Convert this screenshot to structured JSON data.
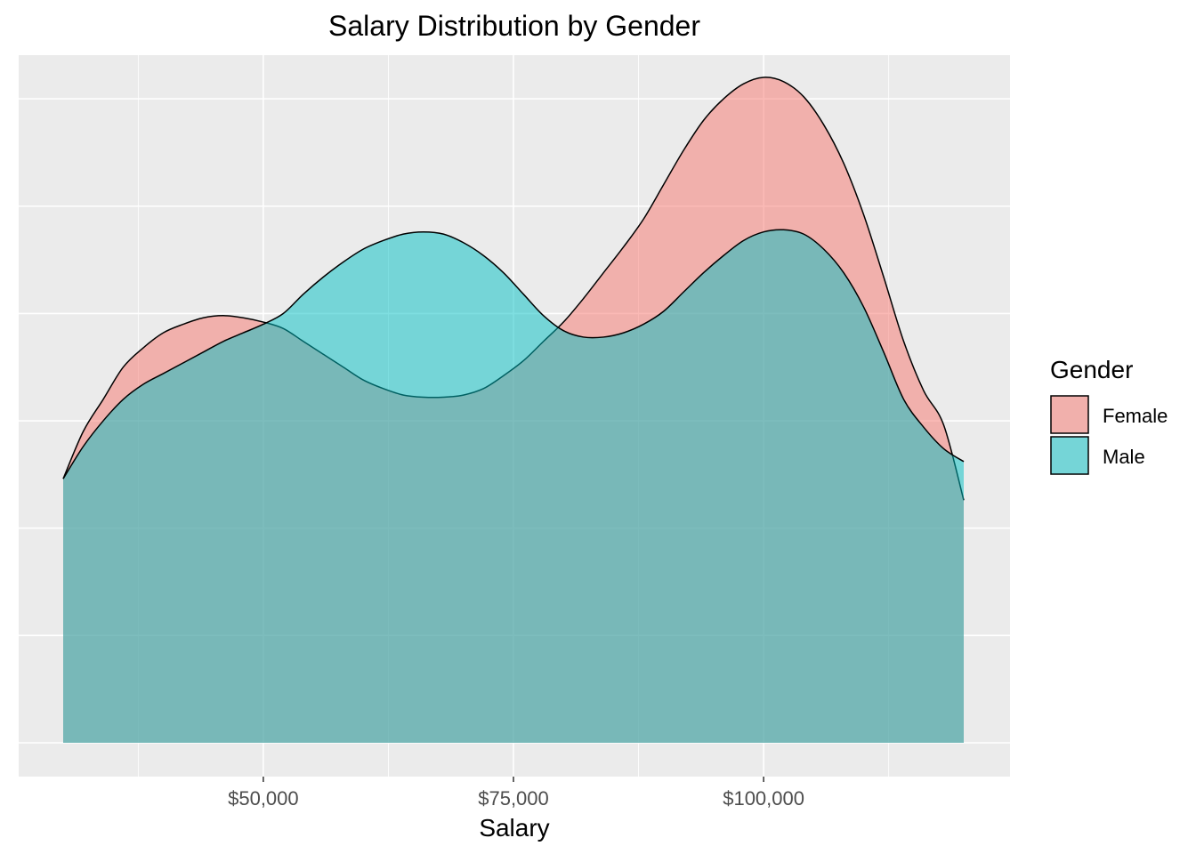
{
  "chart_data": {
    "type": "area",
    "title": "Salary Distribution by Gender",
    "xlabel": "Salary",
    "ylabel": "",
    "x_ticks": [
      50000,
      75000,
      100000
    ],
    "x_tick_labels": [
      "$50,000",
      "$75,000",
      "$100,000"
    ],
    "xlim": [
      30000,
      120000
    ],
    "y_axis_labels_shown": false,
    "ylim": [
      -0.1,
      3.1
    ],
    "y_gridlines": [
      0,
      0.5,
      1,
      1.5,
      2,
      2.5,
      3
    ],
    "grid": true,
    "legend_position": "right",
    "legend_title": "Gender",
    "series": [
      {
        "name": "Female",
        "color": "#F8766D",
        "x": [
          30000,
          32000,
          34000,
          36000,
          38000,
          40000,
          42000,
          44000,
          46000,
          48000,
          50000,
          52000,
          54000,
          56000,
          58000,
          60000,
          62000,
          64000,
          66000,
          68000,
          70000,
          72000,
          74000,
          76000,
          78000,
          80000,
          82000,
          84000,
          86000,
          88000,
          90000,
          92000,
          94000,
          96000,
          98000,
          100000,
          102000,
          104000,
          106000,
          108000,
          110000,
          112000,
          114000,
          116000,
          118000,
          120000
        ],
        "values": [
          1.23,
          1.45,
          1.6,
          1.75,
          1.84,
          1.91,
          1.95,
          1.98,
          1.99,
          1.98,
          1.96,
          1.93,
          1.87,
          1.81,
          1.75,
          1.69,
          1.65,
          1.62,
          1.61,
          1.61,
          1.62,
          1.65,
          1.71,
          1.78,
          1.87,
          1.96,
          2.07,
          2.19,
          2.31,
          2.44,
          2.6,
          2.76,
          2.9,
          3.0,
          3.07,
          3.1,
          3.08,
          3.01,
          2.88,
          2.7,
          2.46,
          2.17,
          1.87,
          1.64,
          1.48,
          1.13
        ]
      },
      {
        "name": "Male",
        "color": "#00BFC4",
        "x": [
          30000,
          32000,
          34000,
          36000,
          38000,
          40000,
          42000,
          44000,
          46000,
          48000,
          50000,
          52000,
          54000,
          56000,
          58000,
          60000,
          62000,
          64000,
          66000,
          68000,
          70000,
          72000,
          74000,
          76000,
          78000,
          80000,
          82000,
          84000,
          86000,
          88000,
          90000,
          92000,
          94000,
          96000,
          98000,
          100000,
          102000,
          104000,
          106000,
          108000,
          110000,
          112000,
          114000,
          116000,
          118000,
          120000
        ],
        "values": [
          1.23,
          1.38,
          1.5,
          1.6,
          1.67,
          1.72,
          1.77,
          1.82,
          1.87,
          1.91,
          1.95,
          2.0,
          2.09,
          2.17,
          2.24,
          2.3,
          2.34,
          2.37,
          2.38,
          2.37,
          2.33,
          2.27,
          2.19,
          2.09,
          1.99,
          1.92,
          1.89,
          1.89,
          1.91,
          1.95,
          2.01,
          2.1,
          2.19,
          2.27,
          2.34,
          2.38,
          2.39,
          2.37,
          2.3,
          2.19,
          2.03,
          1.82,
          1.6,
          1.47,
          1.37,
          1.31
        ]
      }
    ]
  }
}
